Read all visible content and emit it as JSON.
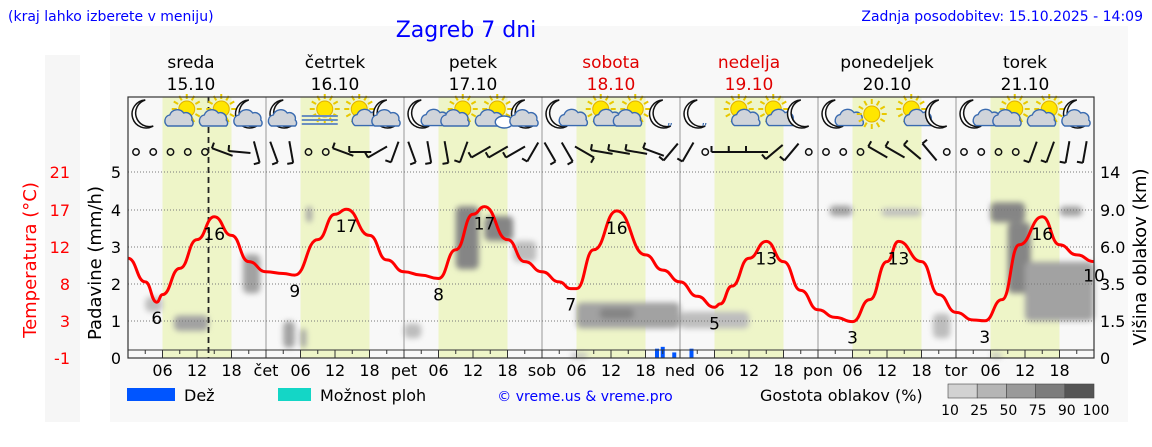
{
  "header": {
    "hint": "(kraj lahko izberete v meniju)",
    "title": "Zagreb 7 dni",
    "updated": "Zadnja posodobitev: 15.10.2025 - 14:09"
  },
  "colors": {
    "link_blue": "#0000ff",
    "weekend": "#e00000",
    "temperature": "#ff0000",
    "daylight": "#eef5c8",
    "rain": "#0055ff",
    "showers": "#14d6c6"
  },
  "days": [
    {
      "name": "sreda",
      "date": "15.10",
      "abbr": "",
      "weekend": false
    },
    {
      "name": "četrtek",
      "date": "16.10",
      "abbr": "čet",
      "weekend": false
    },
    {
      "name": "petek",
      "date": "17.10",
      "abbr": "pet",
      "weekend": false
    },
    {
      "name": "sobota",
      "date": "18.10",
      "abbr": "sob",
      "weekend": true
    },
    {
      "name": "nedelja",
      "date": "19.10",
      "abbr": "ned",
      "weekend": true
    },
    {
      "name": "ponedeljek",
      "date": "20.10",
      "abbr": "pon",
      "weekend": false
    },
    {
      "name": "torek",
      "date": "21.10",
      "abbr": "tor",
      "weekend": false
    }
  ],
  "hour_ticks": [
    "06",
    "12",
    "18"
  ],
  "now": "15.10 14:00",
  "icons": [
    [
      "moon",
      "sun-cloud",
      "sun-cloud",
      "moon-cloud"
    ],
    [
      "moon-cloud",
      "sun-fog",
      "sun-small-cloud",
      "moon-cloud"
    ],
    [
      "moon-small-cloud",
      "sun-cloud",
      "sun-clouds",
      "moon-cloud"
    ],
    [
      "moon-small-cloud",
      "sun-small-cloud",
      "sun-cloud",
      "moon-drizzle"
    ],
    [
      "moon-drizzle",
      "sun-small-cloud",
      "sun-small-cloud",
      "moon"
    ],
    [
      "moon-small-cloud",
      "sun",
      "sun-small-cloud",
      "moon"
    ],
    [
      "moon-small-cloud",
      "sun-cloud",
      "sun-cloud",
      "moon-cloud"
    ]
  ],
  "wind": [
    "calm",
    "calm",
    "calm",
    "calm",
    "calm",
    110,
    95,
    345,
    340,
    350,
    "calm",
    "calm",
    110,
    90,
    60,
    20,
    340,
    350,
    350,
    20,
    60,
    60,
    60,
    30,
    330,
    330,
    300,
    100,
    100,
    100,
    110,
    40,
    30,
    "calm",
    90,
    90,
    90,
    50,
    40,
    "calm",
    "calm",
    "calm",
    "calm",
    120,
    120,
    130,
    140,
    "calm",
    "calm",
    "calm",
    "calm",
    "calm",
    20,
    20,
    10,
    10
  ],
  "chart_data": {
    "type": "line",
    "title": "Zagreb 7 dni",
    "y_left_temperature": {
      "label": "Temperatura (°C)",
      "ticks": [
        "21",
        "17",
        "12",
        "8",
        "3",
        "-1"
      ],
      "range": [
        -1,
        21
      ]
    },
    "y_left_precip": {
      "label": "Padavine (mm/h)",
      "ticks": [
        "5",
        "4",
        "3",
        "2",
        "1",
        "0"
      ],
      "range": [
        0,
        5
      ]
    },
    "y_right_cloud": {
      "label": "Višina oblakov (km)",
      "ticks": [
        "14",
        "9.0",
        "6.0",
        "3.5",
        "1.5",
        "0"
      ]
    },
    "grid": true,
    "temperature": [
      [
        "15.10 00",
        10.8
      ],
      [
        "15.10 03",
        8.0
      ],
      [
        "15.10 05",
        5.6
      ],
      [
        "15.10 06",
        6.5
      ],
      [
        "15.10 09",
        9.6
      ],
      [
        "15.10 12",
        13.0
      ],
      [
        "15.10 15",
        15.7
      ],
      [
        "15.10 18",
        13.5
      ],
      [
        "15.10 21",
        10.4
      ],
      [
        "16.10 00",
        9.2
      ],
      [
        "16.10 03",
        9.0
      ],
      [
        "16.10 05",
        8.8
      ],
      [
        "16.10 09",
        13.0
      ],
      [
        "16.10 12",
        16.0
      ],
      [
        "16.10 14",
        16.6
      ],
      [
        "16.10 18",
        13.5
      ],
      [
        "16.10 21",
        10.6
      ],
      [
        "17.10 00",
        9.2
      ],
      [
        "17.10 03",
        8.8
      ],
      [
        "17.10 06",
        8.4
      ],
      [
        "17.10 09",
        11.8
      ],
      [
        "17.10 12",
        16.0
      ],
      [
        "17.10 14",
        16.9
      ],
      [
        "17.10 18",
        13.0
      ],
      [
        "17.10 21",
        10.4
      ],
      [
        "18.10 00",
        9.2
      ],
      [
        "18.10 03",
        8.0
      ],
      [
        "18.10 05",
        7.2
      ],
      [
        "18.10 06",
        7.2
      ],
      [
        "18.10 09",
        11.8
      ],
      [
        "18.10 13",
        16.4
      ],
      [
        "18.10 18",
        11.2
      ],
      [
        "18.10 21",
        9.4
      ],
      [
        "19.10 00",
        8.0
      ],
      [
        "19.10 03",
        6.3
      ],
      [
        "19.10 06",
        5.0
      ],
      [
        "19.10 07",
        5.4
      ],
      [
        "19.10 09",
        7.5
      ],
      [
        "19.10 12",
        10.8
      ],
      [
        "19.10 15",
        12.8
      ],
      [
        "19.10 18",
        10.4
      ],
      [
        "19.10 21",
        7.0
      ],
      [
        "20.10 00",
        4.7
      ],
      [
        "20.10 03",
        3.8
      ],
      [
        "20.10 06",
        3.3
      ],
      [
        "20.10 09",
        5.9
      ],
      [
        "20.10 12",
        10.4
      ],
      [
        "20.10 14",
        12.8
      ],
      [
        "20.10 18",
        10.4
      ],
      [
        "20.10 21",
        6.5
      ],
      [
        "21.10 00",
        4.4
      ],
      [
        "21.10 03",
        3.5
      ],
      [
        "21.10 05",
        3.4
      ],
      [
        "21.10 08",
        5.9
      ],
      [
        "21.10 11",
        12.4
      ],
      [
        "21.10 15",
        15.7
      ],
      [
        "21.10 18",
        12.4
      ],
      [
        "21.10 21",
        11.2
      ],
      [
        "22.10 00",
        10.4
      ]
    ],
    "temperature_labels": [
      [
        "15.10 05",
        "6",
        "min"
      ],
      [
        "15.10 15",
        "16",
        "max"
      ],
      [
        "16.10 05",
        "9",
        "min"
      ],
      [
        "16.10 14",
        "17",
        "max"
      ],
      [
        "17.10 06",
        "8",
        "min"
      ],
      [
        "17.10 14",
        "17",
        "max"
      ],
      [
        "18.10 05",
        "7",
        "min"
      ],
      [
        "18.10 13",
        "16",
        "max"
      ],
      [
        "19.10 06",
        "5",
        "min"
      ],
      [
        "19.10 15",
        "13",
        "max"
      ],
      [
        "20.10 06",
        "3",
        "min"
      ],
      [
        "20.10 14",
        "13",
        "max"
      ],
      [
        "21.10 05",
        "3",
        "min"
      ],
      [
        "21.10 15",
        "16",
        "max"
      ],
      [
        "22.10 00",
        "10",
        "end"
      ]
    ],
    "precipitation_mm_h": [
      [
        "18.10 20",
        0.25
      ],
      [
        "18.10 21",
        0.3
      ],
      [
        "18.10 23",
        0.15
      ],
      [
        "19.10 02",
        0.25
      ]
    ],
    "cloud_density": [
      {
        "from": "15.10 08",
        "to": "15.10 14",
        "km": [
          1.1,
          1.8
        ],
        "pct": 50
      },
      {
        "from": "15.10 03",
        "to": "15.10 06",
        "km": [
          2.0,
          2.8
        ],
        "pct": 25
      },
      {
        "from": "15.10 20",
        "to": "15.10 23",
        "km": [
          3.0,
          5.5
        ],
        "pct": 50
      },
      {
        "from": "16.10 03",
        "to": "16.10 05",
        "km": [
          0.4,
          1.5
        ],
        "pct": 50
      },
      {
        "from": "16.10 06",
        "to": "16.10 07",
        "km": [
          0.4,
          1.2
        ],
        "pct": 50
      },
      {
        "from": "16.10 07",
        "to": "16.10 08",
        "km": [
          8.0,
          9.5
        ],
        "pct": 50
      },
      {
        "from": "17.10 00",
        "to": "17.10 03",
        "km": [
          0.8,
          1.4
        ],
        "pct": 25
      },
      {
        "from": "17.10 09",
        "to": "17.10 13",
        "km": [
          4.5,
          9.5
        ],
        "pct": 75
      },
      {
        "from": "17.10 14",
        "to": "17.10 19",
        "km": [
          6.5,
          8.5
        ],
        "pct": 75
      },
      {
        "from": "17.10 19",
        "to": "17.10 23",
        "km": [
          5.0,
          6.5
        ],
        "pct": 25
      },
      {
        "from": "18.10 06",
        "to": "19.10 00",
        "km": [
          1.2,
          2.5
        ],
        "pct": 50
      },
      {
        "from": "18.10 10",
        "to": "18.10 16",
        "km": [
          1.6,
          2.2
        ],
        "pct": 75
      },
      {
        "from": "19.10 00",
        "to": "19.10 12",
        "km": [
          1.2,
          2.0
        ],
        "pct": 25
      },
      {
        "from": "20.10 02",
        "to": "20.10 06",
        "km": [
          8.5,
          9.6
        ],
        "pct": 50
      },
      {
        "from": "20.10 11",
        "to": "20.10 18",
        "km": [
          8.5,
          9.2
        ],
        "pct": 25
      },
      {
        "from": "20.10 20",
        "to": "20.10 23",
        "km": [
          0.8,
          1.9
        ],
        "pct": 25
      },
      {
        "from": "21.10 06",
        "to": "21.10 12",
        "km": [
          8.0,
          10.0
        ],
        "pct": 75
      },
      {
        "from": "21.10 09",
        "to": "21.10 13",
        "km": [
          3.0,
          8.0
        ],
        "pct": 75
      },
      {
        "from": "21.10 12",
        "to": "22.10 00",
        "km": [
          1.5,
          5.0
        ],
        "pct": 50
      },
      {
        "from": "21.10 18",
        "to": "21.10 22",
        "km": [
          8.5,
          9.5
        ],
        "pct": 50
      },
      {
        "from": "18.10 05",
        "to": "18.10 08",
        "km": [
          0,
          0.2
        ],
        "pct": 25
      },
      {
        "from": "21.10 06",
        "to": "21.10 08",
        "km": [
          0,
          0.2
        ],
        "pct": 25
      }
    ]
  },
  "legend": {
    "rain": "Dež",
    "showers": "Možnost ploh",
    "credit": "© vreme.us & vreme.pro",
    "cloud_title": "Gostota oblakov (%)",
    "cloud_levels": [
      "10",
      "25",
      "50",
      "75",
      "90",
      "100"
    ],
    "cloud_colors": [
      "#d2d2d2",
      "#b5b5b5",
      "#9a9a9a",
      "#7c7c7c",
      "#555555"
    ]
  }
}
